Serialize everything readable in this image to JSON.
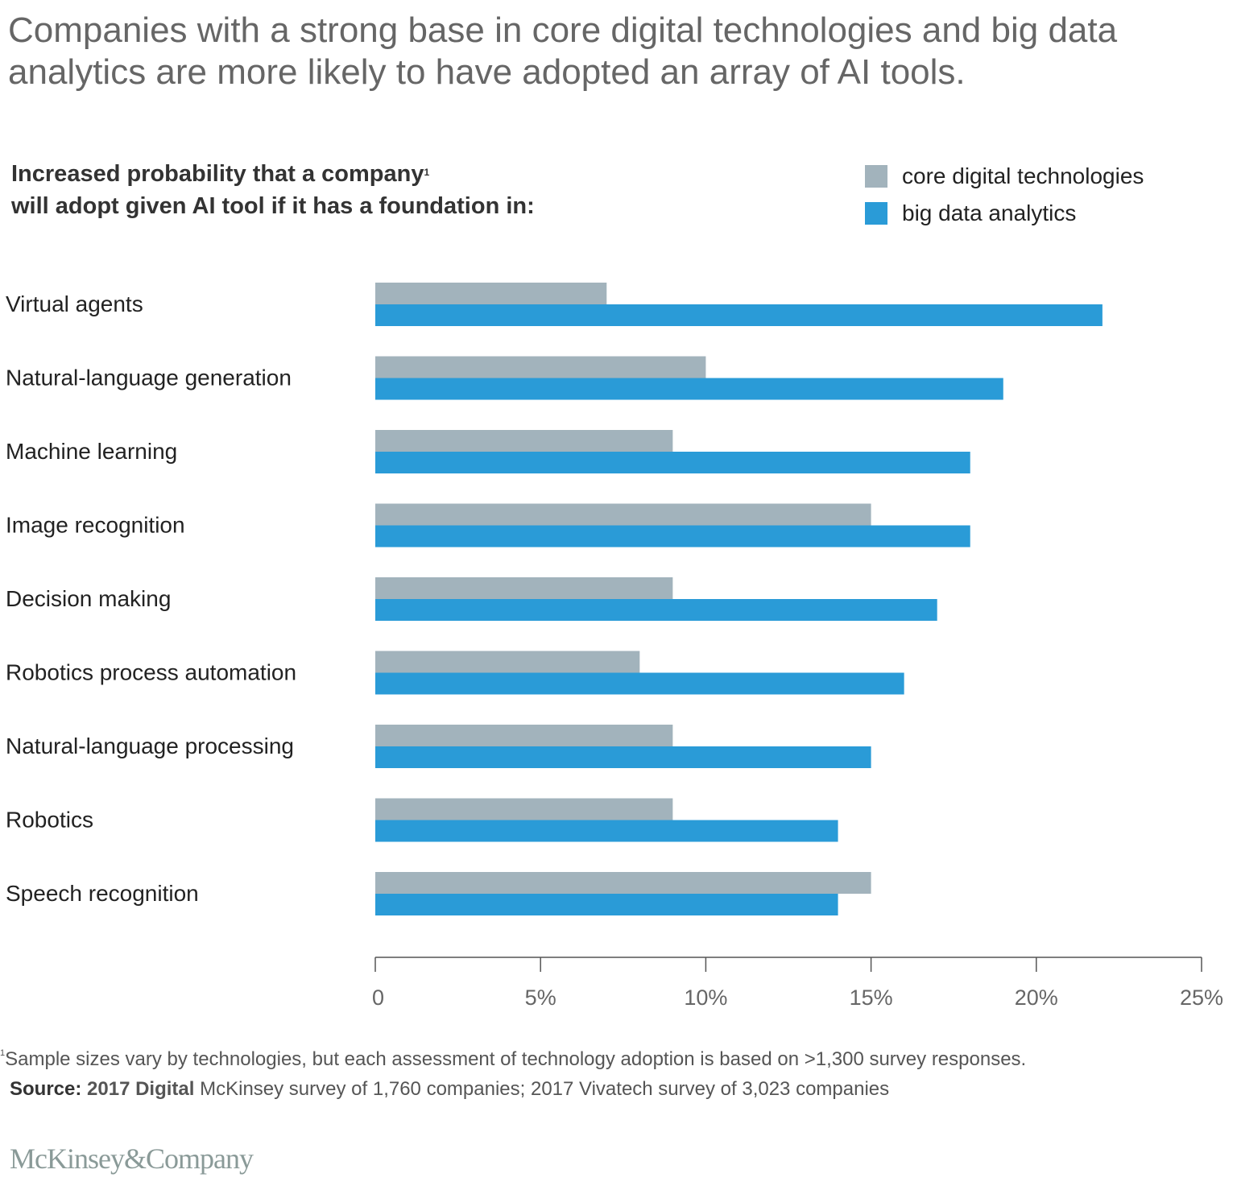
{
  "headline": "Companies with a strong base in core digital technologies and big data analytics are more likely to have adopted an array of AI tools.",
  "subtitle": {
    "line1": "Increased probability that a company",
    "footnote_marker": "1",
    "line2": "will adopt given AI tool if it has a foundation in:"
  },
  "legend": [
    {
      "label": "core digital technologies",
      "color": "#a2b3bc"
    },
    {
      "label": "big data analytics",
      "color": "#2a9bd7"
    }
  ],
  "chart_data": {
    "type": "bar",
    "orientation": "horizontal",
    "title": "Increased probability that a company will adopt given AI tool if it has a foundation in:",
    "xlabel": "",
    "ylabel": "",
    "categories": [
      "Virtual agents",
      "Natural-language generation",
      "Machine learning",
      "Image recognition",
      "Decision making",
      "Robotics process automation",
      "Natural-language processing",
      "Robotics",
      "Speech recognition"
    ],
    "series": [
      {
        "name": "core digital technologies",
        "color": "#a2b3bc",
        "values": [
          7,
          10,
          9,
          15,
          9,
          8,
          9,
          9,
          15
        ]
      },
      {
        "name": "big data analytics",
        "color": "#2a9bd7",
        "values": [
          22,
          19,
          18,
          18,
          17,
          16,
          15,
          14,
          14
        ]
      }
    ],
    "xlim": [
      0,
      25
    ],
    "xticks": [
      0,
      5,
      10,
      15,
      20,
      25
    ],
    "xtick_labels": [
      "0",
      "5%",
      "10%",
      "15%",
      "20%",
      "25%"
    ],
    "grid": false,
    "legend_position": "top-right",
    "units": "%"
  },
  "footnote": {
    "marker": "1",
    "text": "Sample sizes vary by technologies, but each assessment of technology adoption is based on >1,300 survey responses."
  },
  "source": {
    "label": "Source:",
    "bold_part": "2017 Digital",
    "text": " McKinsey survey of 1,760 companies; 2017 Vivatech survey of 3,023 companies"
  },
  "logo": "McKinsey&Company"
}
